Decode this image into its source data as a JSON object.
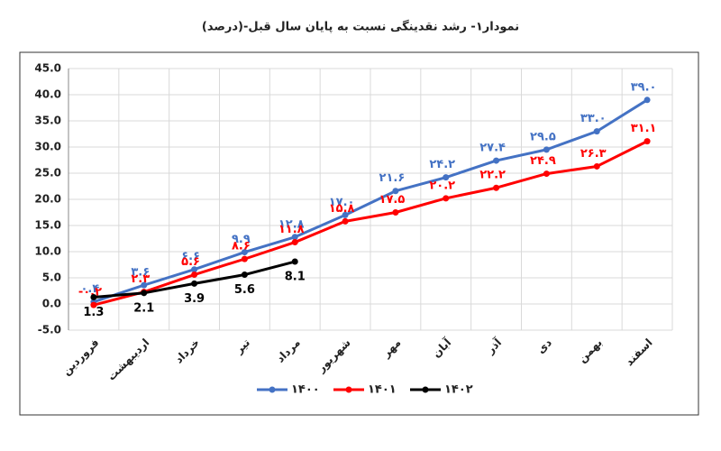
{
  "chart_data": {
    "type": "line",
    "title": "نمودار۱- رشد نقدینگی نسبت به پایان سال قبل-(درصد)",
    "categories": [
      "فروردین",
      "اردیبهشت",
      "خرداد",
      "تیر",
      "مرداد",
      "شهریور",
      "مهر",
      "آبان",
      "آذر",
      "دی",
      "بهمن",
      "اسفند"
    ],
    "series": [
      {
        "name": "۱۴۰۰",
        "color": "#4472c4",
        "values": [
          0.4,
          3.6,
          6.6,
          9.9,
          12.8,
          17.0,
          21.6,
          24.2,
          27.4,
          29.5,
          33.0,
          39.0
        ],
        "value_labels": [
          "۰.۴",
          "۳.۶",
          "۶.۶",
          "۹.۹",
          "۱۲.۸",
          "۱۷.۰",
          "۲۱.۶",
          "۲۴.۲",
          "۲۷.۴",
          "۲۹.۵",
          "۳۳.۰",
          "۳۹.۰"
        ]
      },
      {
        "name": "۱۴۰۱",
        "color": "#ff0000",
        "values": [
          -0.2,
          2.3,
          5.6,
          8.6,
          11.8,
          15.8,
          17.5,
          20.2,
          22.2,
          24.9,
          26.3,
          31.1
        ],
        "value_labels": [
          "-۰.۲",
          "۲.۳",
          "۵.۶",
          "۸.۶",
          "۱۱.۸",
          "۱۵.۸",
          "۱۷.۵",
          "۲۰.۲",
          "۲۲.۲",
          "۲۴.۹",
          "۲۶.۳",
          "۳۱.۱"
        ]
      },
      {
        "name": "۱۴۰۲",
        "color": "#000000",
        "values": [
          1.3,
          2.1,
          3.9,
          5.6,
          8.1,
          null,
          null,
          null,
          null,
          null,
          null,
          null
        ]
      }
    ],
    "ylim": [
      -5,
      45
    ],
    "yticks": [
      {
        "value": -5,
        "label": "-5.0"
      },
      {
        "value": 0,
        "label": "0.0"
      },
      {
        "value": 5,
        "label": "5.0"
      },
      {
        "value": 10,
        "label": "10.0"
      },
      {
        "value": 15,
        "label": "15.0"
      },
      {
        "value": 20,
        "label": "20.0"
      },
      {
        "value": 25,
        "label": "25.0"
      },
      {
        "value": 30,
        "label": "30.0"
      },
      {
        "value": 35,
        "label": "35.0"
      },
      {
        "value": 40,
        "label": "40.0"
      },
      {
        "value": 45,
        "label": "45.0"
      }
    ],
    "grid": true
  }
}
